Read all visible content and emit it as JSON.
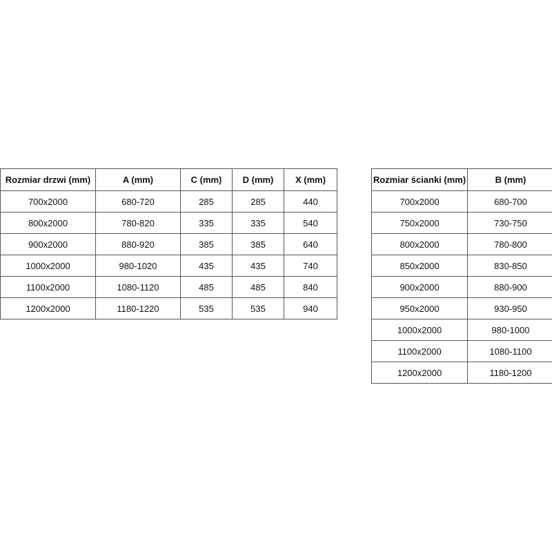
{
  "doors_table": {
    "headers": [
      "Rozmiar drzwi (mm)",
      "A (mm)",
      "C (mm)",
      "D (mm)",
      "X (mm)"
    ],
    "rows": [
      [
        "700x2000",
        "680-720",
        "285",
        "285",
        "440"
      ],
      [
        "800x2000",
        "780-820",
        "335",
        "335",
        "540"
      ],
      [
        "900x2000",
        "880-920",
        "385",
        "385",
        "640"
      ],
      [
        "1000x2000",
        "980-1020",
        "435",
        "435",
        "740"
      ],
      [
        "1100x2000",
        "1080-1120",
        "485",
        "485",
        "840"
      ],
      [
        "1200x2000",
        "1180-1220",
        "535",
        "535",
        "940"
      ]
    ]
  },
  "wall_table": {
    "headers": [
      "Rozmiar ścianki (mm)",
      "B (mm)"
    ],
    "rows": [
      [
        "700x2000",
        "680-700"
      ],
      [
        "750x2000",
        "730-750"
      ],
      [
        "800x2000",
        "780-800"
      ],
      [
        "850x2000",
        "830-850"
      ],
      [
        "900x2000",
        "880-900"
      ],
      [
        "950x2000",
        "930-950"
      ],
      [
        "1000x2000",
        "980-1000"
      ],
      [
        "1100x2000",
        "1080-1100"
      ],
      [
        "1200x2000",
        "1180-1200"
      ]
    ]
  }
}
